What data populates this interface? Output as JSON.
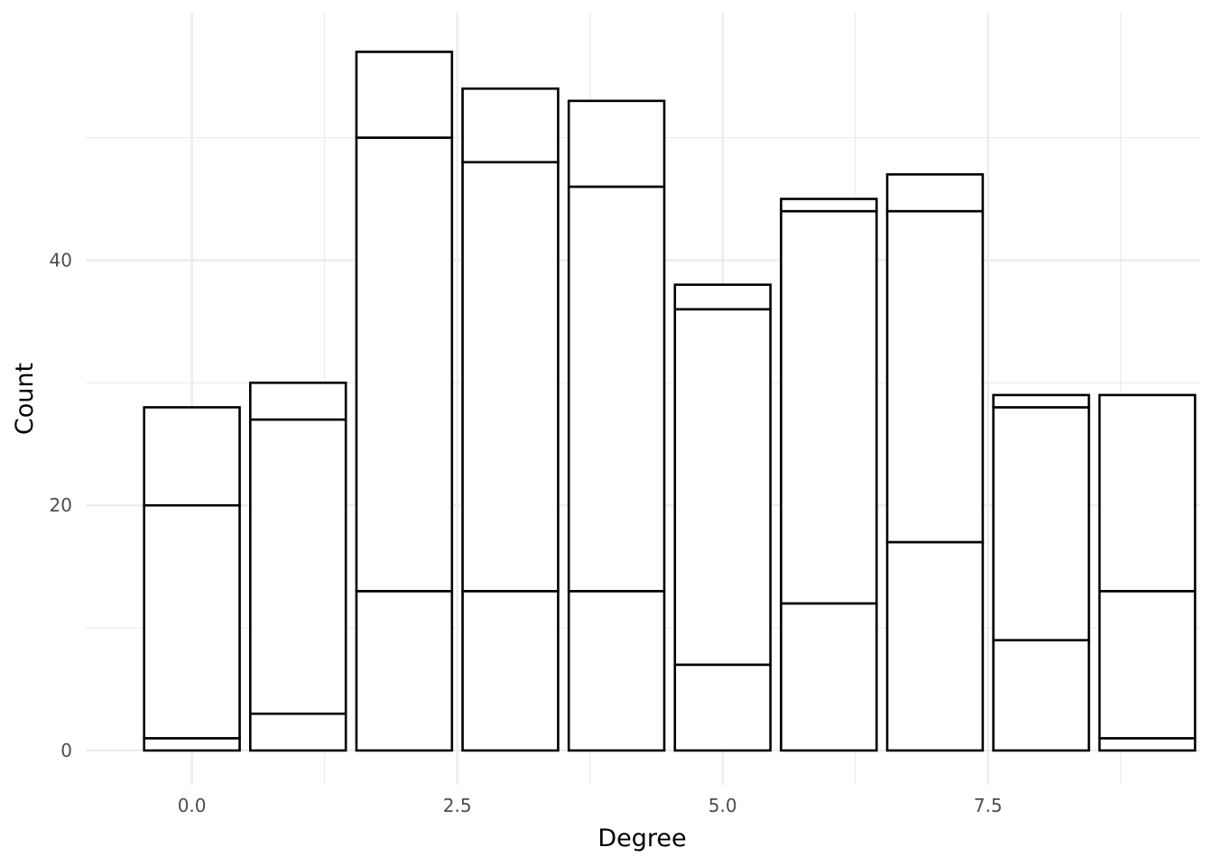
{
  "chart_data": {
    "type": "bar",
    "stacked": true,
    "xlabel": "Degree",
    "ylabel": "Count",
    "x": [
      0,
      1,
      2,
      3,
      4,
      5,
      6,
      7,
      8,
      9
    ],
    "series": [
      {
        "values": [
          1,
          3,
          13,
          13,
          13,
          7,
          12,
          17,
          9,
          1
        ]
      },
      {
        "values": [
          19,
          24,
          37,
          35,
          33,
          29,
          32,
          27,
          19,
          12
        ]
      },
      {
        "values": [
          8,
          3,
          7,
          6,
          7,
          2,
          1,
          3,
          1,
          16
        ]
      }
    ],
    "xlim": [
      -1.0,
      9.5
    ],
    "ylim": [
      -2.8,
      60.2
    ],
    "x_ticks": [
      0.0,
      2.5,
      5.0,
      7.5
    ],
    "x_tick_labels": [
      "0.0",
      "2.5",
      "5.0",
      "7.5"
    ],
    "y_ticks": [
      0,
      20,
      40
    ],
    "y_tick_labels": [
      "0",
      "20",
      "40"
    ],
    "bar_fill": "#ffffff",
    "bar_outline": "#000000",
    "grid": true,
    "background": "#ffffff",
    "legend": "none"
  }
}
